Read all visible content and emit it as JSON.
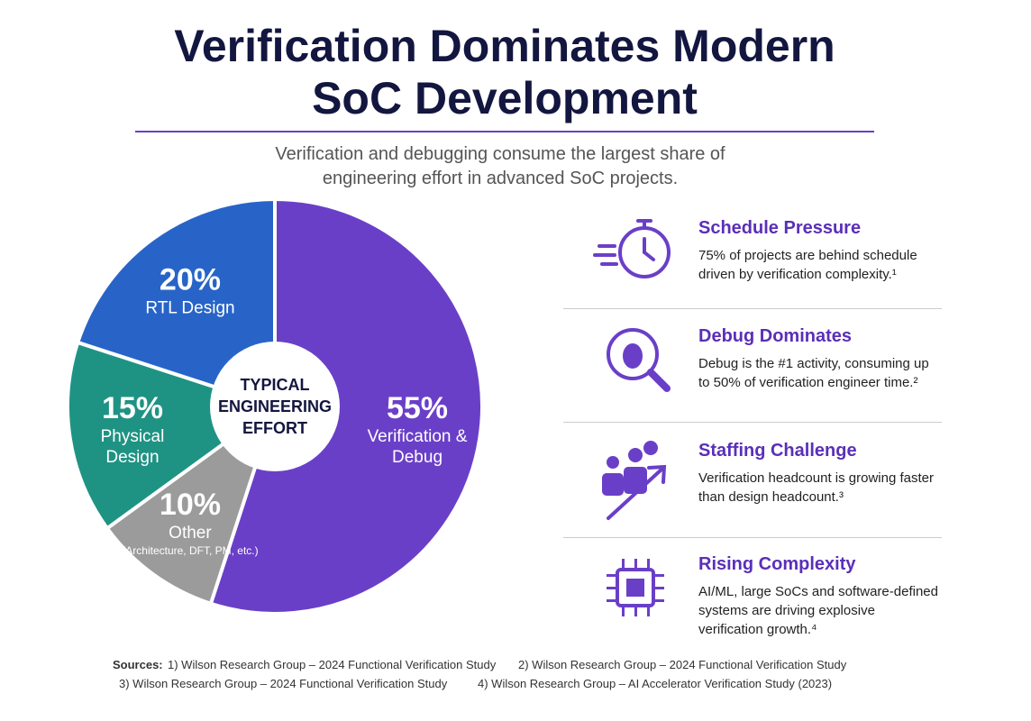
{
  "title": "Verification Dominates Modern SoC Development",
  "subtitle": "Verification and debugging consume the largest share of engineering effort in advanced SoC projects.",
  "chart_data": {
    "type": "pie",
    "center_label": "TYPICAL ENGINEERING EFFORT",
    "categories": [
      "Verification & Debug",
      "Other",
      "Physical Design",
      "RTL Design"
    ],
    "notes": [
      null,
      "(Architecture, DFT, PM, etc.)",
      null,
      null
    ],
    "values": [
      55,
      10,
      15,
      20
    ],
    "value_labels": [
      "55%",
      "10%",
      "15%",
      "20%"
    ],
    "colors": [
      "#6a3fc8",
      "#9b9b9b",
      "#1f9383",
      "#2864c8"
    ]
  },
  "cards": [
    {
      "title": "Schedule Pressure",
      "text": "75% of projects are behind schedule driven by verification complexity.¹"
    },
    {
      "title": "Debug Dominates",
      "text": "Debug is the #1 activity, consuming up to 50% of verification engineer time.²"
    },
    {
      "title": "Staffing Challenge",
      "text": "Verification headcount is growing faster than design headcount.³"
    },
    {
      "title": "Rising Complexity",
      "text": "AI/ML, large SoCs and software-defined systems are driving explosive verification growth.⁴"
    }
  ],
  "sources": {
    "label": "Sources:",
    "items": [
      "1) Wilson Research Group – 2024 Functional Verification Study",
      "2) Wilson Research Group – 2024 Functional Verification Study",
      "3) Wilson Research Group – 2024 Functional Verification Study",
      "4) Wilson Research Group – AI Accelerator Verification Study (2023)"
    ]
  }
}
